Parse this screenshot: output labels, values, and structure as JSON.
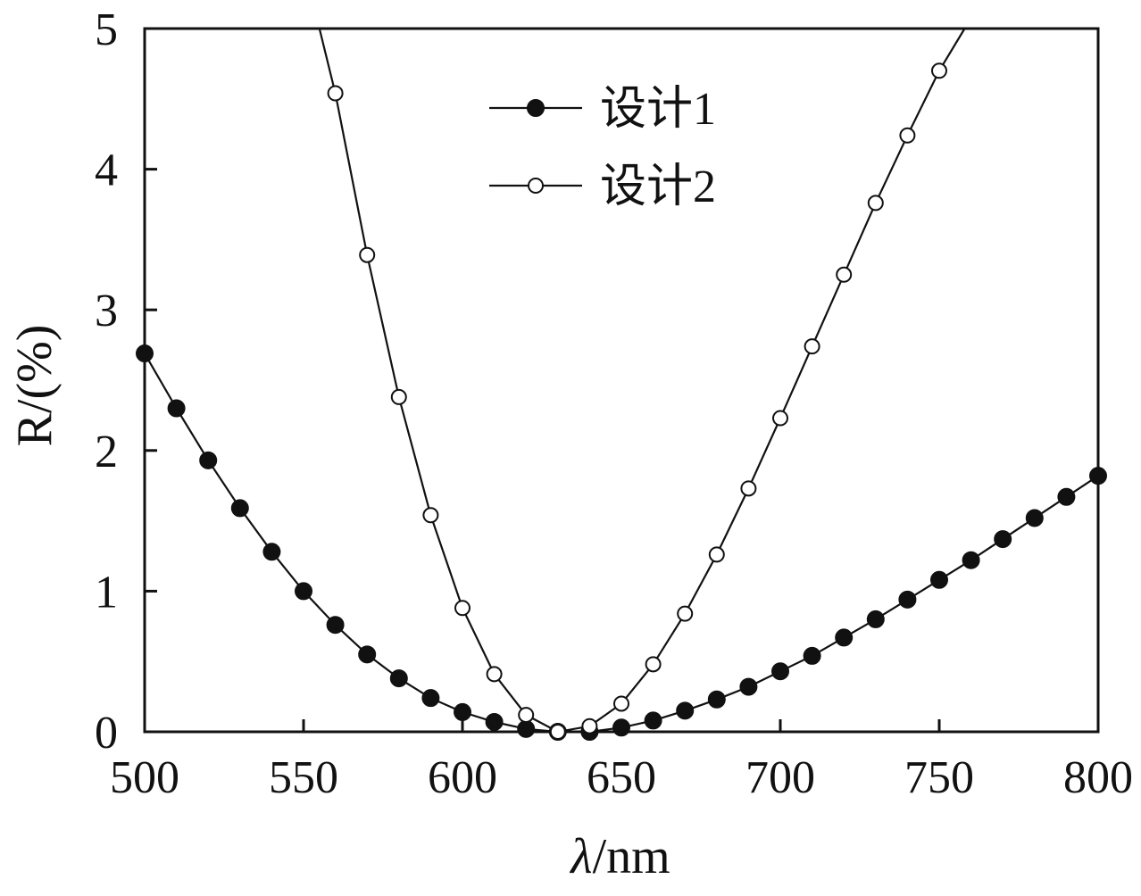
{
  "chart_data": {
    "type": "line",
    "title": "",
    "xlabel_italic": "λ",
    "xlabel_rest": "/nm",
    "ylabel": "R/(%)",
    "xlim": [
      500,
      800
    ],
    "ylim": [
      0,
      5
    ],
    "xticks": [
      500,
      550,
      600,
      650,
      700,
      750,
      800
    ],
    "yticks": [
      0,
      1,
      2,
      3,
      4,
      5
    ],
    "grid": false,
    "legend_position": "top-center",
    "series": [
      {
        "name": "设计1",
        "marker": "filled-circle",
        "color": "#111111",
        "x": [
          500,
          510,
          520,
          530,
          540,
          550,
          560,
          570,
          580,
          590,
          600,
          610,
          620,
          630,
          640,
          650,
          660,
          670,
          680,
          690,
          700,
          710,
          720,
          730,
          740,
          750,
          760,
          770,
          780,
          790,
          800
        ],
        "y": [
          2.69,
          2.3,
          1.93,
          1.59,
          1.28,
          1.0,
          0.76,
          0.55,
          0.38,
          0.24,
          0.14,
          0.07,
          0.02,
          0.0,
          0.0,
          0.03,
          0.08,
          0.15,
          0.23,
          0.32,
          0.43,
          0.54,
          0.67,
          0.8,
          0.94,
          1.08,
          1.22,
          1.37,
          1.52,
          1.67,
          1.82
        ]
      },
      {
        "name": "设计2",
        "marker": "open-circle",
        "color": "#111111",
        "x": [
          560,
          570,
          580,
          590,
          600,
          610,
          620,
          630,
          640,
          650,
          660,
          670,
          680,
          690,
          700,
          710,
          720,
          730,
          740,
          750
        ],
        "y": [
          4.54,
          3.39,
          2.38,
          1.54,
          0.88,
          0.41,
          0.12,
          0.0,
          0.04,
          0.2,
          0.48,
          0.84,
          1.26,
          1.73,
          2.23,
          2.74,
          3.25,
          3.76,
          4.24,
          4.7
        ],
        "line_x": [
          555,
          560,
          570,
          580,
          590,
          600,
          610,
          620,
          630,
          640,
          650,
          660,
          670,
          680,
          690,
          700,
          710,
          720,
          730,
          740,
          750,
          758
        ],
        "line_y": [
          5.0,
          4.54,
          3.39,
          2.38,
          1.54,
          0.88,
          0.41,
          0.12,
          0.0,
          0.04,
          0.2,
          0.48,
          0.84,
          1.26,
          1.73,
          2.23,
          2.74,
          3.25,
          3.76,
          4.24,
          4.7,
          5.0
        ]
      }
    ]
  }
}
